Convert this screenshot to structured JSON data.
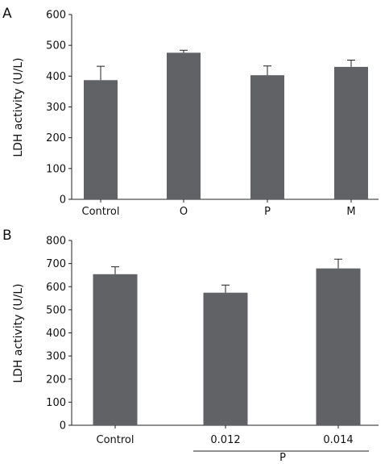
{
  "chart_data": [
    {
      "type": "bar",
      "panel_label": "A",
      "categories": [
        "Control",
        "O",
        "P",
        "M"
      ],
      "values": [
        387,
        476,
        403,
        430
      ],
      "errors": [
        45,
        8,
        30,
        22
      ],
      "xlabel": "",
      "ylabel": "LDH activity (U/L)",
      "ylim": [
        0,
        600
      ],
      "yticks": [
        0,
        100,
        200,
        300,
        400,
        500,
        600
      ],
      "grid": false,
      "bar_color": "#616266"
    },
    {
      "type": "bar",
      "panel_label": "B",
      "categories": [
        "Control",
        "0.012",
        "0.014"
      ],
      "values": [
        654,
        574,
        679
      ],
      "errors": [
        32,
        33,
        40
      ],
      "xlabel": "",
      "ylabel": "LDH activity (U/L)",
      "ylim": [
        0,
        800
      ],
      "yticks": [
        0,
        100,
        200,
        300,
        400,
        500,
        600,
        700,
        800
      ],
      "grid": false,
      "bar_color": "#616266",
      "group_label": "P"
    }
  ]
}
